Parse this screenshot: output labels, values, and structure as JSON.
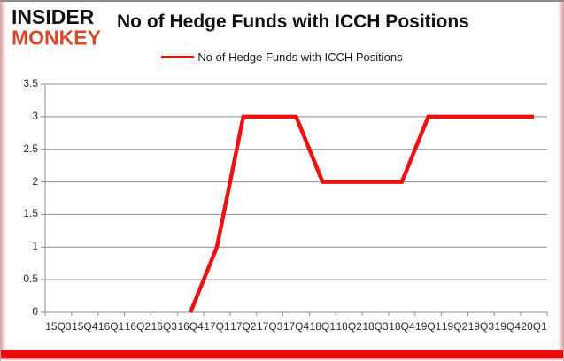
{
  "brand": {
    "line1": "INSIDER",
    "line2": "MONKEY"
  },
  "header": {
    "title": "No of Hedge Funds with ICCH Positions"
  },
  "legend": {
    "label": "No of Hedge Funds with ICCH Positions"
  },
  "colors": {
    "series_red": "#ee1111",
    "logo_black": "#111111",
    "logo_red": "#d8492b",
    "bottom_bar_red": "#ee0a0a",
    "grid_gray": "#8c8c8c",
    "tick_text": "#2b2b2b"
  },
  "chart_data": {
    "type": "line",
    "title": "No of Hedge Funds with ICCH Positions",
    "categories": [
      "15Q3",
      "15Q4",
      "16Q1",
      "16Q2",
      "16Q3",
      "16Q4",
      "17Q1",
      "17Q2",
      "17Q3",
      "17Q4",
      "18Q1",
      "18Q2",
      "18Q3",
      "18Q4",
      "19Q1",
      "19Q2",
      "19Q3",
      "19Q4",
      "20Q1"
    ],
    "series": [
      {
        "name": "No of Hedge Funds with ICCH Positions",
        "values": [
          null,
          null,
          null,
          null,
          null,
          0,
          1,
          3,
          3,
          3,
          2,
          2,
          2,
          2,
          3,
          3,
          3,
          3,
          3
        ],
        "color": "#ee1111"
      }
    ],
    "xlabel": "",
    "ylabel": "",
    "ylim": [
      0,
      3.5
    ],
    "ytick_step": 0.5,
    "grid": true,
    "legend_position": "top"
  }
}
